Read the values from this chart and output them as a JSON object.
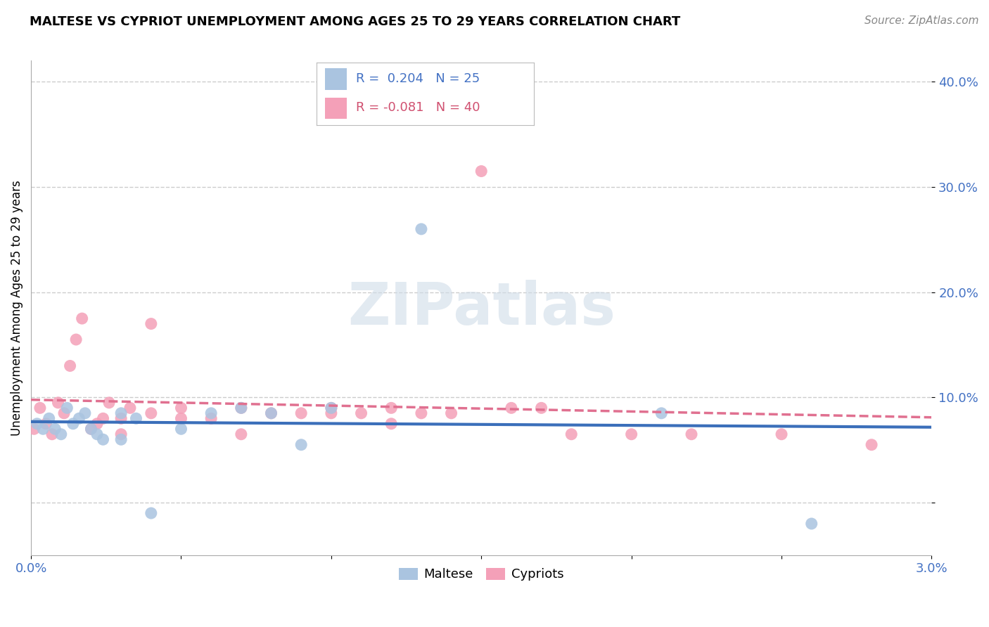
{
  "title": "MALTESE VS CYPRIOT UNEMPLOYMENT AMONG AGES 25 TO 29 YEARS CORRELATION CHART",
  "source": "Source: ZipAtlas.com",
  "ylabel": "Unemployment Among Ages 25 to 29 years",
  "xlim": [
    0.0,
    0.03
  ],
  "ylim": [
    -0.05,
    0.42
  ],
  "xticks": [
    0.0,
    0.005,
    0.01,
    0.015,
    0.02,
    0.025,
    0.03
  ],
  "xtick_labels": [
    "0.0%",
    "",
    "",
    "",
    "",
    "",
    "3.0%"
  ],
  "yticks": [
    0.0,
    0.1,
    0.2,
    0.3,
    0.4
  ],
  "ytick_labels": [
    "",
    "10.0%",
    "20.0%",
    "30.0%",
    "40.0%"
  ],
  "maltese_R": 0.204,
  "maltese_N": 25,
  "cypriot_R": -0.081,
  "cypriot_N": 40,
  "maltese_color": "#aac4e0",
  "cypriot_color": "#f4a0b8",
  "maltese_line_color": "#3b6fba",
  "cypriot_line_color": "#e07090",
  "legend_R_color": "#4472c4",
  "legend_R2_color": "#d05070",
  "maltese_x": [
    0.0002,
    0.0004,
    0.0006,
    0.0008,
    0.001,
    0.0012,
    0.0014,
    0.0016,
    0.0018,
    0.002,
    0.0022,
    0.0024,
    0.003,
    0.003,
    0.0035,
    0.004,
    0.005,
    0.006,
    0.007,
    0.008,
    0.009,
    0.01,
    0.013,
    0.021,
    0.026
  ],
  "maltese_y": [
    0.075,
    0.07,
    0.08,
    0.07,
    0.065,
    0.09,
    0.075,
    0.08,
    0.085,
    0.07,
    0.065,
    0.06,
    0.06,
    0.085,
    0.08,
    -0.01,
    0.07,
    0.085,
    0.09,
    0.085,
    0.055,
    0.09,
    0.26,
    0.085,
    -0.02
  ],
  "cypriot_x": [
    0.0001,
    0.0003,
    0.0005,
    0.0007,
    0.0009,
    0.0011,
    0.0013,
    0.0015,
    0.0017,
    0.002,
    0.0022,
    0.0024,
    0.0026,
    0.003,
    0.003,
    0.0033,
    0.004,
    0.004,
    0.005,
    0.005,
    0.006,
    0.007,
    0.007,
    0.008,
    0.009,
    0.01,
    0.01,
    0.011,
    0.012,
    0.012,
    0.013,
    0.014,
    0.015,
    0.016,
    0.017,
    0.018,
    0.02,
    0.022,
    0.025,
    0.028
  ],
  "cypriot_y": [
    0.07,
    0.09,
    0.075,
    0.065,
    0.095,
    0.085,
    0.13,
    0.155,
    0.175,
    0.07,
    0.075,
    0.08,
    0.095,
    0.065,
    0.08,
    0.09,
    0.085,
    0.17,
    0.08,
    0.09,
    0.08,
    0.065,
    0.09,
    0.085,
    0.085,
    0.085,
    0.09,
    0.085,
    0.075,
    0.09,
    0.085,
    0.085,
    0.315,
    0.09,
    0.09,
    0.065,
    0.065,
    0.065,
    0.065,
    0.055
  ],
  "background_color": "#ffffff",
  "grid_color": "#cccccc"
}
